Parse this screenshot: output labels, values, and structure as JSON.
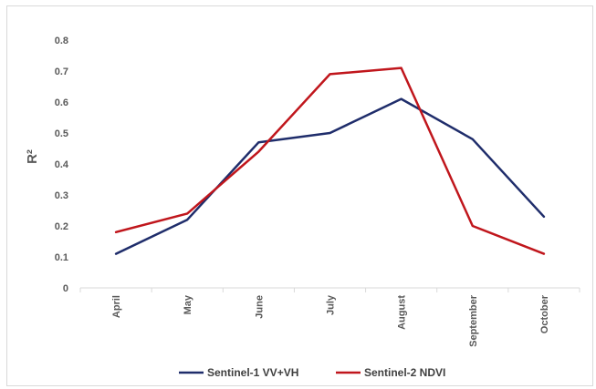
{
  "chart_data": {
    "type": "line",
    "title": "",
    "xlabel": "",
    "ylabel": "R²",
    "categories": [
      "April",
      "May",
      "June",
      "July",
      "August",
      "September",
      "October"
    ],
    "yticks": [
      "0",
      "0.1",
      "0.2",
      "0.3",
      "0.4",
      "0.5",
      "0.6",
      "0.7",
      "0.8"
    ],
    "ylim": [
      0,
      0.8
    ],
    "grid": false,
    "legend_position": "bottom",
    "series": [
      {
        "name": "Sentinel-1 VV+VH",
        "color": "#1f2d6b",
        "values": [
          0.11,
          0.22,
          0.47,
          0.5,
          0.61,
          0.48,
          0.23
        ]
      },
      {
        "name": "Sentinel-2 NDVI",
        "color": "#c0161c",
        "values": [
          0.18,
          0.24,
          0.44,
          0.69,
          0.71,
          0.2,
          0.11
        ]
      }
    ]
  }
}
